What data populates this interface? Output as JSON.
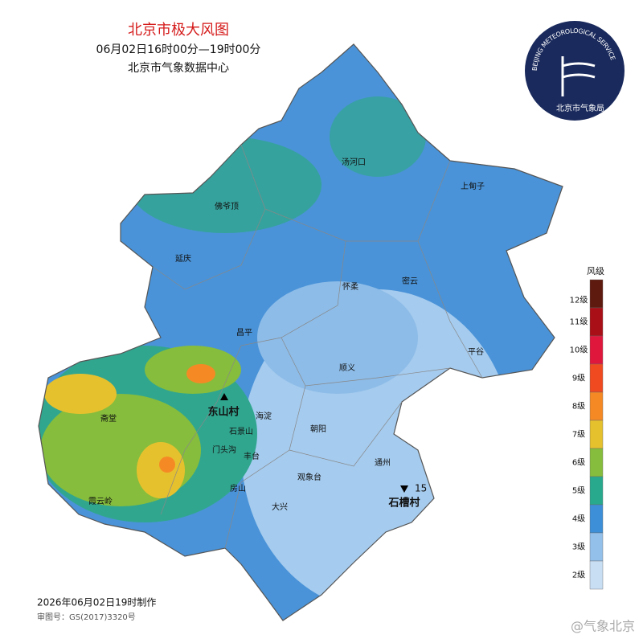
{
  "header": {
    "title": "北京市极大风图",
    "period": "06月02日16时00分—19时00分",
    "source": "北京市气象数据中心"
  },
  "logo": {
    "ring_text": "BEIJING METEOROLOGICAL SERVICE",
    "name": "北京市气象局"
  },
  "places": [
    "汤河口",
    "上甸子",
    "佛爷顶",
    "延庆",
    "怀柔",
    "密云",
    "昌平",
    "平谷",
    "顺义",
    "东山村",
    "海淀",
    "斋堂",
    "石景山",
    "朝阳",
    "门头沟",
    "丰台",
    "通州",
    "观象台",
    "房山",
    "大兴",
    "霞云岭",
    "石槽村"
  ],
  "station_value": "15",
  "legend": {
    "title": "风级",
    "items": [
      {
        "label": "12级",
        "color": "#5e1a0e"
      },
      {
        "label": "11级",
        "color": "#a80f16"
      },
      {
        "label": "10级",
        "color": "#e0173c"
      },
      {
        "label": "9级",
        "color": "#f04a20"
      },
      {
        "label": "8级",
        "color": "#f58a25"
      },
      {
        "label": "7级",
        "color": "#e6c12e"
      },
      {
        "label": "6级",
        "color": "#86bd3c"
      },
      {
        "label": "5级",
        "color": "#28a98e"
      },
      {
        "label": "4级",
        "color": "#3d8fd8"
      },
      {
        "label": "3级",
        "color": "#93c0ea"
      },
      {
        "label": "2级",
        "color": "#c8def3"
      }
    ]
  },
  "footer": {
    "made": "2026年06月02日19时制作",
    "approval": "审图号：GS(2017)3320号"
  },
  "watermark": "@气象北京"
}
